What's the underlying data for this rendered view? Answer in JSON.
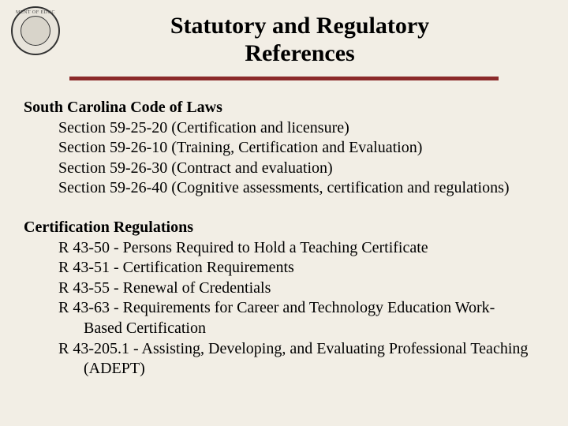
{
  "background_color": "#f2eee5",
  "rule_color": "#8b2a2a",
  "text_color": "#000000",
  "title_line1": "Statutory and Regulatory",
  "title_line2": "References",
  "sections": [
    {
      "header": "South Carolina Code of Laws",
      "items": [
        "Section 59-25-20 (Certification and licensure)",
        "Section 59-26-10 (Training, Certification and Evaluation)",
        "Section 59-26-30 (Contract and evaluation)",
        "Section 59-26-40 (Cognitive assessments, certification and regulations)"
      ]
    },
    {
      "header": "Certification Regulations",
      "items": [
        "R 43-50 - Persons Required to Hold a Teaching Certificate",
        "R 43-51 - Certification Requirements",
        "R 43-55 - Renewal of Credentials",
        "R 43-63 - Requirements for Career and Technology Education Work-",
        "R 43-205.1 - Assisting, Developing, and Evaluating Professional Teaching"
      ],
      "continuations": {
        "3": "Based Certification",
        "4": "(ADEPT)"
      }
    }
  ]
}
